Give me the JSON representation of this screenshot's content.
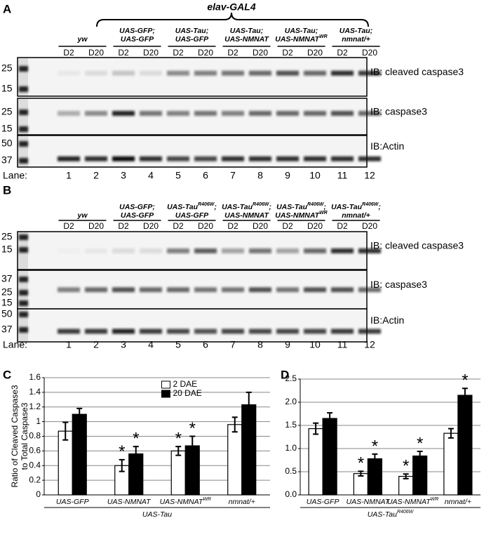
{
  "panels": {
    "A": {
      "label": "A",
      "driver": "elav-GAL4",
      "groups": [
        {
          "lines": [
            [
              {
                "text": "yw"
              }
            ]
          ],
          "days": [
            "D2",
            "D20"
          ]
        },
        {
          "lines": [
            [
              {
                "text": "UAS-GFP;"
              }
            ],
            [
              {
                "text": "UAS-GFP"
              }
            ]
          ],
          "days": [
            "D2",
            "D20"
          ]
        },
        {
          "lines": [
            [
              {
                "text": "UAS-Tau;"
              }
            ],
            [
              {
                "text": "UAS-GFP"
              }
            ]
          ],
          "days": [
            "D2",
            "D20"
          ]
        },
        {
          "lines": [
            [
              {
                "text": "UAS-Tau;"
              }
            ],
            [
              {
                "text": "UAS-NMNAT"
              }
            ]
          ],
          "days": [
            "D2",
            "D20"
          ]
        },
        {
          "lines": [
            [
              {
                "text": "UAS-Tau;"
              }
            ],
            [
              {
                "text": "UAS-NMNAT"
              },
              {
                "text": "WR",
                "sup": true
              }
            ]
          ],
          "days": [
            "D2",
            "D20"
          ]
        },
        {
          "lines": [
            [
              {
                "text": "UAS-Tau;"
              }
            ],
            [
              {
                "text": "nmnat/+"
              }
            ]
          ],
          "days": [
            "D2",
            "D20"
          ]
        }
      ],
      "blots": [
        {
          "markers": [
            "25",
            "15"
          ],
          "label": "IB: cleaved caspase3"
        },
        {
          "markers": [
            "25",
            "15"
          ],
          "label": "IB: caspase3"
        },
        {
          "markers": [
            "50",
            "37"
          ],
          "label": "IB:Actin"
        }
      ],
      "lane_title": "Lane:",
      "lanes": [
        "1",
        "2",
        "3",
        "4",
        "5",
        "6",
        "7",
        "8",
        "9",
        "10",
        "11",
        "12"
      ]
    },
    "B": {
      "label": "B",
      "groups": [
        {
          "lines": [
            [
              {
                "text": "yw"
              }
            ]
          ],
          "days": [
            "D2",
            "D20"
          ]
        },
        {
          "lines": [
            [
              {
                "text": "UAS-GFP;"
              }
            ],
            [
              {
                "text": "UAS-GFP"
              }
            ]
          ],
          "days": [
            "D2",
            "D20"
          ]
        },
        {
          "lines": [
            [
              {
                "text": "UAS-Tau"
              },
              {
                "text": "R406W",
                "sup": true
              },
              {
                "text": ";"
              }
            ],
            [
              {
                "text": "UAS-GFP"
              }
            ]
          ],
          "days": [
            "D2",
            "D20"
          ]
        },
        {
          "lines": [
            [
              {
                "text": "UAS-Tau"
              },
              {
                "text": "R406W",
                "sup": true
              },
              {
                "text": ";"
              }
            ],
            [
              {
                "text": "UAS-NMNAT"
              }
            ]
          ],
          "days": [
            "D2",
            "D20"
          ]
        },
        {
          "lines": [
            [
              {
                "text": "UAS-Tau"
              },
              {
                "text": "R406W",
                "sup": true
              },
              {
                "text": ";"
              }
            ],
            [
              {
                "text": "UAS-NMNAT"
              },
              {
                "text": "WR",
                "sup": true
              }
            ]
          ],
          "days": [
            "D2",
            "D20"
          ]
        },
        {
          "lines": [
            [
              {
                "text": "UAS-Tau"
              },
              {
                "text": "R406W",
                "sup": true
              },
              {
                "text": ";"
              }
            ],
            [
              {
                "text": "nmnat/+"
              }
            ]
          ],
          "days": [
            "D2",
            "D20"
          ]
        }
      ],
      "blots": [
        {
          "markers": [
            "25",
            "15"
          ],
          "label": "IB: cleaved caspase3"
        },
        {
          "markers": [
            "37",
            "25",
            "15"
          ],
          "label": "IB: caspase3"
        },
        {
          "markers": [
            "50",
            "37"
          ],
          "label": "IB:Actin"
        }
      ],
      "lane_title": "Lane:",
      "lanes": [
        "1",
        "2",
        "3",
        "4",
        "5",
        "6",
        "7",
        "8",
        "9",
        "10",
        "11",
        "12"
      ]
    }
  },
  "chart_data": [
    {
      "type": "bar",
      "panel_label": "C",
      "ylabel": [
        "Ratio of Cleaved Caspase3",
        "to Total Caspase3"
      ],
      "categories": [
        [
          {
            "text": "UAS-GFP"
          }
        ],
        [
          {
            "text": "UAS-NMNAT"
          }
        ],
        [
          {
            "text": "UAS-NMNAT"
          },
          {
            "text": "WR",
            "sup": true
          }
        ],
        [
          {
            "text": "nmnat/+"
          }
        ]
      ],
      "group_label": [
        {
          "text": "UAS-Tau"
        }
      ],
      "series": [
        {
          "name": "2 DAE",
          "color": "#ffffff",
          "values": [
            0.87,
            0.4,
            0.6,
            0.96
          ],
          "errors": [
            0.12,
            0.08,
            0.06,
            0.1
          ],
          "marks": [
            null,
            "*",
            "*",
            null
          ]
        },
        {
          "name": "20 DAE",
          "color": "#000000",
          "values": [
            1.1,
            0.56,
            0.67,
            1.23
          ],
          "errors": [
            0.08,
            0.1,
            0.13,
            0.17
          ],
          "marks": [
            null,
            "*",
            "*",
            null
          ]
        }
      ],
      "ylim": [
        0,
        1.6
      ],
      "yticks": [
        0,
        0.2,
        0.4,
        0.6,
        0.8,
        1,
        1.2,
        1.4,
        1.6
      ],
      "grid": true,
      "legend": "top-right"
    },
    {
      "type": "bar",
      "panel_label": "D",
      "categories": [
        [
          {
            "text": "UAS-GFP"
          }
        ],
        [
          {
            "text": "UAS-NMNAT"
          }
        ],
        [
          {
            "text": "UAS-NMNAT"
          },
          {
            "text": "WR",
            "sup": true
          }
        ],
        [
          {
            "text": "nmnat/+"
          }
        ]
      ],
      "group_label": [
        {
          "text": "UAS-Tau"
        },
        {
          "text": "R406W",
          "sup": true
        }
      ],
      "series": [
        {
          "color": "#ffffff",
          "values": [
            1.43,
            0.46,
            0.4,
            1.33
          ],
          "errors": [
            0.12,
            0.05,
            0.05,
            0.1
          ],
          "marks": [
            null,
            "*",
            "*",
            null
          ]
        },
        {
          "color": "#000000",
          "values": [
            1.65,
            0.78,
            0.84,
            2.15
          ],
          "errors": [
            0.12,
            0.1,
            0.1,
            0.15
          ],
          "marks": [
            null,
            "*",
            "*",
            "*"
          ]
        }
      ],
      "ylim": [
        0,
        2.5
      ],
      "yticks": [
        {
          "value": 0,
          "label": "0.0"
        },
        0.5,
        {
          "value": 1,
          "label": "1.0"
        },
        1.5,
        {
          "value": 2,
          "label": "2.0"
        },
        2.5
      ],
      "grid": true
    }
  ]
}
